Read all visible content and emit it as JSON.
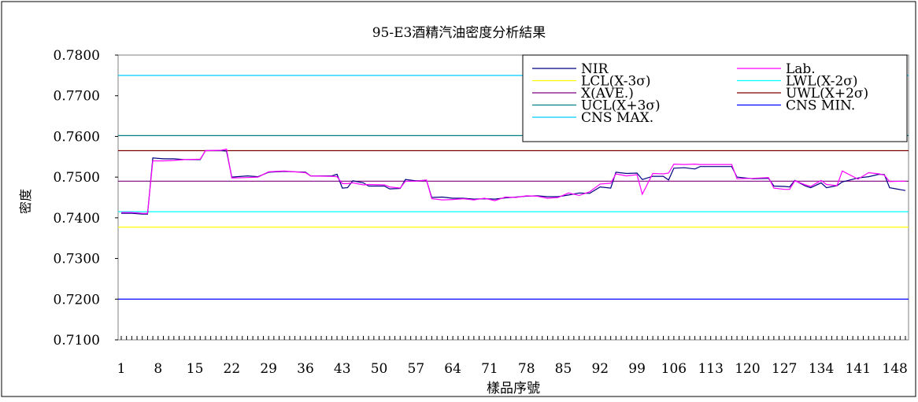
{
  "chart_data": {
    "type": "line",
    "title": "95-E3酒精汽油密度分析結果",
    "xlabel": "樣品序號",
    "ylabel": "密度",
    "ylim": [
      0.71,
      0.78
    ],
    "yticks": [
      "0.7800",
      "0.7700",
      "0.7600",
      "0.7500",
      "0.7400",
      "0.7300",
      "0.7200",
      "0.7100"
    ],
    "xlim": [
      1,
      150
    ],
    "xticks": [
      1,
      8,
      15,
      22,
      29,
      36,
      43,
      50,
      57,
      64,
      71,
      78,
      85,
      92,
      99,
      106,
      113,
      120,
      127,
      134,
      141,
      148
    ],
    "grid": false,
    "legend_position": "top-right",
    "series": [
      {
        "name": "NIR",
        "color": "#000080",
        "style": "data",
        "points": [
          [
            1,
            0.7411
          ],
          [
            3,
            0.7411
          ],
          [
            5,
            0.7409
          ],
          [
            6,
            0.7409
          ],
          [
            7,
            0.7547
          ],
          [
            9,
            0.7545
          ],
          [
            11,
            0.7545
          ],
          [
            13,
            0.7543
          ],
          [
            16,
            0.7543
          ],
          [
            17,
            0.7565
          ],
          [
            20,
            0.7565
          ],
          [
            21,
            0.7564
          ],
          [
            22,
            0.75
          ],
          [
            25,
            0.7503
          ],
          [
            27,
            0.7501
          ],
          [
            29,
            0.7512
          ],
          [
            32,
            0.7514
          ],
          [
            36,
            0.7512
          ],
          [
            37,
            0.7503
          ],
          [
            41,
            0.7503
          ],
          [
            42,
            0.7507
          ],
          [
            43,
            0.7473
          ],
          [
            44,
            0.7474
          ],
          [
            45,
            0.7491
          ],
          [
            47,
            0.7486
          ],
          [
            48,
            0.7478
          ],
          [
            51,
            0.7478
          ],
          [
            52,
            0.7471
          ],
          [
            54,
            0.7472
          ],
          [
            55,
            0.7494
          ],
          [
            57,
            0.7491
          ],
          [
            59,
            0.7492
          ],
          [
            60,
            0.745
          ],
          [
            62,
            0.7451
          ],
          [
            64,
            0.7448
          ],
          [
            66,
            0.7448
          ],
          [
            68,
            0.7446
          ],
          [
            70,
            0.7447
          ],
          [
            72,
            0.7446
          ],
          [
            74,
            0.7449
          ],
          [
            76,
            0.7451
          ],
          [
            78,
            0.7453
          ],
          [
            80,
            0.7454
          ],
          [
            82,
            0.7452
          ],
          [
            84,
            0.7452
          ],
          [
            86,
            0.7456
          ],
          [
            88,
            0.7461
          ],
          [
            90,
            0.746
          ],
          [
            92,
            0.7476
          ],
          [
            94,
            0.7473
          ],
          [
            95,
            0.7512
          ],
          [
            97,
            0.7509
          ],
          [
            99,
            0.751
          ],
          [
            100,
            0.7494
          ],
          [
            102,
            0.7502
          ],
          [
            104,
            0.7502
          ],
          [
            105,
            0.7493
          ],
          [
            106,
            0.7522
          ],
          [
            108,
            0.7523
          ],
          [
            110,
            0.752
          ],
          [
            111,
            0.7526
          ],
          [
            117,
            0.7526
          ],
          [
            118,
            0.75
          ],
          [
            121,
            0.7496
          ],
          [
            124,
            0.7497
          ],
          [
            125,
            0.7478
          ],
          [
            127,
            0.7477
          ],
          [
            128,
            0.7476
          ],
          [
            129,
            0.7492
          ],
          [
            131,
            0.7478
          ],
          [
            132,
            0.7474
          ],
          [
            134,
            0.7486
          ],
          [
            135,
            0.7474
          ],
          [
            137,
            0.7479
          ],
          [
            138,
            0.7488
          ],
          [
            141,
            0.7498
          ],
          [
            143,
            0.7501
          ],
          [
            145,
            0.7507
          ],
          [
            146,
            0.7506
          ],
          [
            147,
            0.7474
          ],
          [
            150,
            0.7467
          ]
        ]
      },
      {
        "name": "Lab.",
        "color": "#ff00ff",
        "style": "data",
        "points": [
          [
            1,
            0.7413
          ],
          [
            3,
            0.7413
          ],
          [
            5,
            0.7411
          ],
          [
            6,
            0.7411
          ],
          [
            7,
            0.754
          ],
          [
            9,
            0.754
          ],
          [
            11,
            0.7541
          ],
          [
            13,
            0.7543
          ],
          [
            16,
            0.7544
          ],
          [
            17,
            0.7565
          ],
          [
            20,
            0.7566
          ],
          [
            21,
            0.7569
          ],
          [
            22,
            0.7498
          ],
          [
            25,
            0.7499
          ],
          [
            27,
            0.75
          ],
          [
            29,
            0.7513
          ],
          [
            32,
            0.7515
          ],
          [
            36,
            0.7511
          ],
          [
            37,
            0.7503
          ],
          [
            41,
            0.7502
          ],
          [
            42,
            0.7501
          ],
          [
            43,
            0.7484
          ],
          [
            44,
            0.7484
          ],
          [
            45,
            0.7486
          ],
          [
            47,
            0.7481
          ],
          [
            48,
            0.7482
          ],
          [
            51,
            0.7481
          ],
          [
            52,
            0.7476
          ],
          [
            54,
            0.7473
          ],
          [
            55,
            0.749
          ],
          [
            57,
            0.749
          ],
          [
            59,
            0.7493
          ],
          [
            60,
            0.7447
          ],
          [
            62,
            0.7444
          ],
          [
            64,
            0.7445
          ],
          [
            66,
            0.7447
          ],
          [
            68,
            0.7444
          ],
          [
            70,
            0.7448
          ],
          [
            72,
            0.7442
          ],
          [
            74,
            0.7451
          ],
          [
            76,
            0.745
          ],
          [
            78,
            0.7454
          ],
          [
            80,
            0.7453
          ],
          [
            82,
            0.7448
          ],
          [
            84,
            0.745
          ],
          [
            86,
            0.7461
          ],
          [
            88,
            0.7455
          ],
          [
            90,
            0.7464
          ],
          [
            92,
            0.7483
          ],
          [
            94,
            0.7485
          ],
          [
            95,
            0.7508
          ],
          [
            97,
            0.7503
          ],
          [
            99,
            0.7506
          ],
          [
            100,
            0.7458
          ],
          [
            102,
            0.7509
          ],
          [
            104,
            0.7508
          ],
          [
            105,
            0.751
          ],
          [
            106,
            0.7532
          ],
          [
            108,
            0.7531
          ],
          [
            110,
            0.7532
          ],
          [
            111,
            0.7531
          ],
          [
            117,
            0.7531
          ],
          [
            118,
            0.7496
          ],
          [
            121,
            0.7497
          ],
          [
            124,
            0.7499
          ],
          [
            125,
            0.7473
          ],
          [
            127,
            0.747
          ],
          [
            128,
            0.747
          ],
          [
            129,
            0.7491
          ],
          [
            131,
            0.7481
          ],
          [
            132,
            0.7477
          ],
          [
            134,
            0.7492
          ],
          [
            135,
            0.7482
          ],
          [
            137,
            0.7479
          ],
          [
            138,
            0.7515
          ],
          [
            141,
            0.7495
          ],
          [
            143,
            0.7511
          ],
          [
            145,
            0.7508
          ],
          [
            146,
            0.7505
          ],
          [
            147,
            0.7489
          ],
          [
            150,
            0.749
          ]
        ]
      },
      {
        "name": "LCL(X-3σ)",
        "color": "#ffff00",
        "style": "hline",
        "value": 0.7377
      },
      {
        "name": "LWL(X-2σ)",
        "color": "#00ffff",
        "style": "hline",
        "value": 0.7415
      },
      {
        "name": "X(AVE.)",
        "color": "#800080",
        "style": "hline",
        "value": 0.749
      },
      {
        "name": "UWL(X+2σ)",
        "color": "#800000",
        "style": "hline",
        "value": 0.7565
      },
      {
        "name": "UCL(X+3σ)",
        "color": "#008080",
        "style": "hline",
        "value": 0.7602
      },
      {
        "name": "CNS MIN.",
        "color": "#0000ff",
        "style": "hline",
        "value": 0.72
      },
      {
        "name": "CNS MAX.",
        "color": "#00ccff",
        "style": "hline",
        "value": 0.775
      }
    ]
  }
}
